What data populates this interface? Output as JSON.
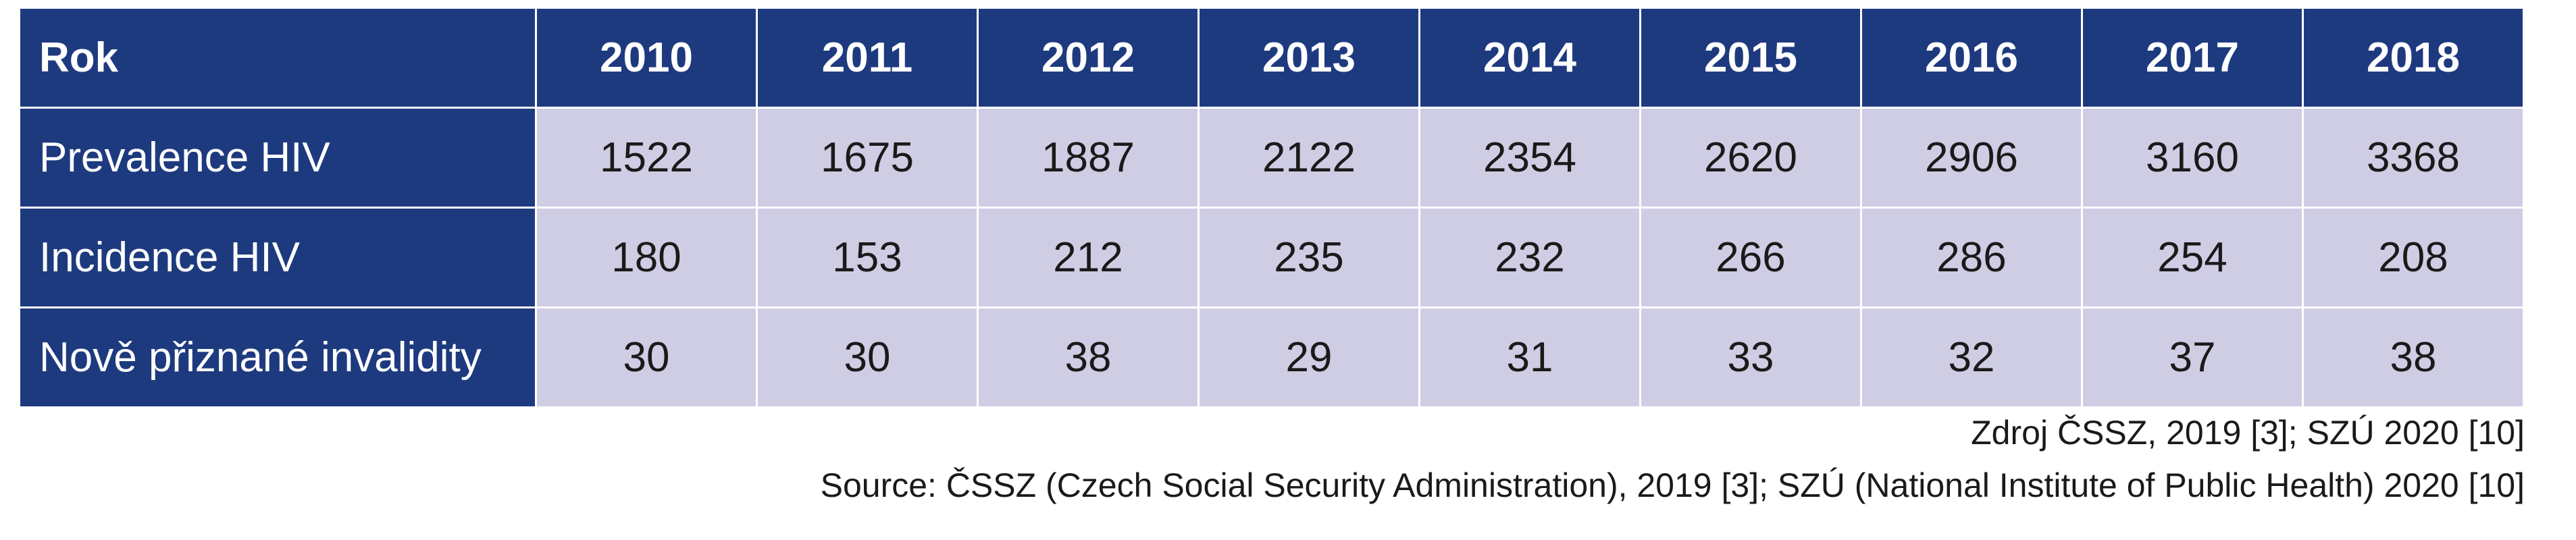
{
  "table": {
    "header_label": "Rok",
    "years": [
      "2010",
      "2011",
      "2012",
      "2013",
      "2014",
      "2015",
      "2016",
      "2017",
      "2018"
    ],
    "rows": [
      {
        "label": "Prevalence HIV",
        "values": [
          "1522",
          "1675",
          "1887",
          "2122",
          "2354",
          "2620",
          "2906",
          "3160",
          "3368"
        ]
      },
      {
        "label": "Incidence HIV",
        "values": [
          "180",
          "153",
          "212",
          "235",
          "232",
          "266",
          "286",
          "254",
          "208"
        ]
      },
      {
        "label": "Nově přiznané invalidity",
        "values": [
          "30",
          "30",
          "38",
          "29",
          "31",
          "33",
          "32",
          "37",
          "38"
        ]
      }
    ]
  },
  "source": {
    "czech": "Zdroj ČSSZ, 2019 [3]; SZÚ 2020 [10]",
    "english": "Source: ČSSZ (Czech Social Security Administration), 2019 [3]; SZÚ (National Institute of Public Health) 2020 [10]"
  },
  "colors": {
    "header_bg": "#1e3a7f",
    "cell_bg": "#cfcde4"
  }
}
